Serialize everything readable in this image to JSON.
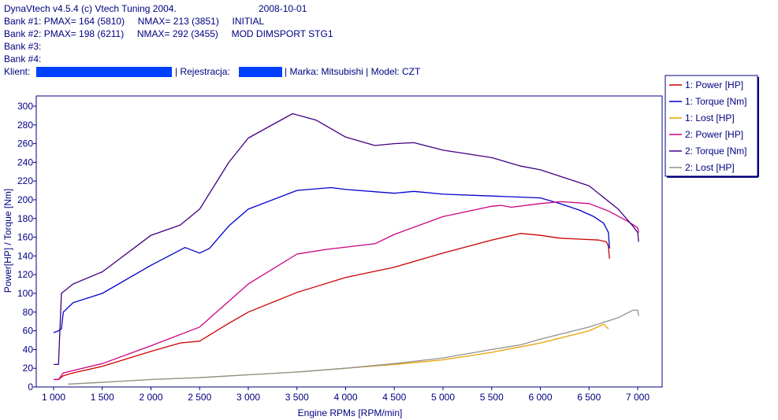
{
  "header": {
    "line1": "DynaVtech v4.5.4 (c) Vtech Tuning 2004.",
    "date": "2008-10-01",
    "bank1": "Bank #1: PMAX= 164 (5810)     NMAX= 213 (3851)     INITIAL",
    "bank2": "Bank #2: PMAX= 198 (6211)     NMAX= 292 (3455)     MOD DIMSPORT STG1",
    "bank3": "Bank #3:",
    "bank4": "Bank #4:",
    "klient_label": "Klient:",
    "rejestracja_label": "| Rejestracja:",
    "marka_model": "| Marka: Mitsubishi | Model: CZT"
  },
  "colors": {
    "axis": "#000080",
    "grid": "#808080",
    "redaction": "#0040ff",
    "plot_bg": "#ffffff"
  },
  "chart_data": {
    "type": "line",
    "xlabel": "Engine RPMs [RPM/min]",
    "ylabel": "Power[HP] / Torque [Nm]",
    "xlim": [
      1000,
      7000
    ],
    "ylim": [
      0,
      300
    ],
    "x_ticks": [
      1000,
      1500,
      2000,
      2500,
      3000,
      3500,
      4000,
      4500,
      5000,
      5500,
      6000,
      6500,
      7000
    ],
    "x_tick_labels": [
      "1 000",
      "1 500",
      "2 000",
      "2 500",
      "3 000",
      "3 500",
      "4 000",
      "4 500",
      "5 000",
      "5 500",
      "6 000",
      "6 500",
      "7 000"
    ],
    "y_ticks": [
      0,
      20,
      40,
      60,
      80,
      100,
      120,
      140,
      160,
      180,
      200,
      220,
      240,
      260,
      280,
      300
    ],
    "grid": true,
    "legend_position": "top-right",
    "series": [
      {
        "name": "1: Power [HP]",
        "color": "#cc0000",
        "x": [
          1000,
          1050,
          1100,
          1200,
          1500,
          2000,
          2300,
          2500,
          2800,
          3000,
          3500,
          4000,
          4500,
          5000,
          5500,
          5800,
          6000,
          6200,
          6400,
          6600,
          6680,
          6700,
          6710
        ],
        "y": [
          8,
          8,
          12,
          15,
          22,
          38,
          47,
          49,
          68,
          80,
          101,
          117,
          128,
          143,
          157,
          164,
          162,
          159,
          158,
          157,
          155,
          150,
          137
        ]
      },
      {
        "name": "1: Torque [Nm]",
        "color": "#0000cc",
        "x": [
          1000,
          1050,
          1080,
          1100,
          1200,
          1500,
          2000,
          2350,
          2500,
          2600,
          2800,
          3000,
          3500,
          3851,
          4000,
          4500,
          4700,
          5000,
          5500,
          6000,
          6200,
          6400,
          6550,
          6650,
          6700,
          6710
        ],
        "y": [
          58,
          60,
          62,
          80,
          90,
          100,
          130,
          149,
          143,
          148,
          172,
          190,
          210,
          213,
          211,
          207,
          209,
          206,
          204,
          202,
          196,
          189,
          182,
          175,
          165,
          148
        ]
      },
      {
        "name": "1: Lost [HP]",
        "color": "#e8a000",
        "x": [
          1150,
          1500,
          2000,
          2500,
          3000,
          3500,
          4000,
          4500,
          5000,
          5500,
          6000,
          6500,
          6650,
          6700
        ],
        "y": [
          3,
          5,
          8,
          10,
          13,
          16,
          20,
          24,
          29,
          37,
          47,
          60,
          67,
          62
        ]
      },
      {
        "name": "2: Power [HP]",
        "color": "#cc0080",
        "x": [
          1000,
          1050,
          1100,
          1500,
          2000,
          2500,
          3000,
          3500,
          3800,
          4300,
          4500,
          5000,
          5500,
          5600,
          5700,
          6000,
          6211,
          6500,
          6700,
          6900,
          7000,
          7010
        ],
        "y": [
          8,
          8,
          15,
          25,
          44,
          64,
          110,
          142,
          147,
          153,
          163,
          182,
          193,
          194,
          192,
          196,
          198,
          196,
          188,
          177,
          170,
          165
        ]
      },
      {
        "name": "2: Torque [Nm]",
        "color": "#400080",
        "x": [
          1000,
          1050,
          1080,
          1200,
          1500,
          2000,
          2300,
          2500,
          2800,
          3000,
          3455,
          3700,
          4000,
          4300,
          4500,
          4700,
          5000,
          5500,
          5800,
          6000,
          6500,
          6800,
          6950,
          7000,
          7010
        ],
        "y": [
          24,
          24,
          100,
          110,
          123,
          162,
          173,
          190,
          240,
          266,
          292,
          285,
          267,
          258,
          260,
          261,
          253,
          245,
          236,
          232,
          215,
          190,
          172,
          165,
          155
        ]
      },
      {
        "name": "2: Lost [HP]",
        "color": "#909090",
        "x": [
          1150,
          1500,
          2000,
          2500,
          3000,
          3500,
          4000,
          4500,
          5000,
          5500,
          5800,
          6000,
          6500,
          6800,
          6950,
          7000,
          7010
        ],
        "y": [
          3,
          5,
          8,
          10,
          13,
          16,
          20,
          25,
          31,
          40,
          45,
          51,
          64,
          74,
          82,
          82,
          76
        ]
      }
    ]
  }
}
